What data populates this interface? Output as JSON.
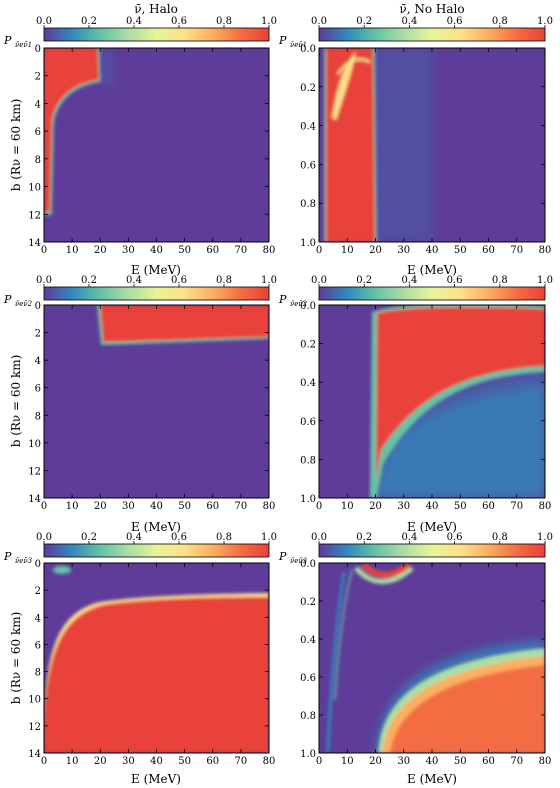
{
  "colors": {
    "colormap": [
      "#5e3c99",
      "#3288bd",
      "#66c2a5",
      "#abdda4",
      "#e6f598",
      "#fee08b",
      "#fdae61",
      "#f46d43",
      "#e8423a"
    ],
    "frame": "#000000"
  },
  "colorbar": {
    "ticks": [
      0.0,
      0.2,
      0.4,
      0.6,
      0.8,
      1.0
    ],
    "tick_labels": [
      "0.0",
      "0.2",
      "0.4",
      "0.6",
      "0.8",
      "1.0"
    ]
  },
  "columns": [
    {
      "title": "ν̄, Halo",
      "ylabel": "b (Rν = 60 km)",
      "yticks": [
        0,
        2,
        4,
        6,
        8,
        10,
        12,
        14
      ],
      "ytick_labels": [
        "0",
        "2",
        "4",
        "6",
        "8",
        "10",
        "12",
        "14"
      ],
      "ylim": [
        0,
        14
      ]
    },
    {
      "title": "ν̄, No Halo",
      "ylabel": "",
      "yticks": [
        0.0,
        0.2,
        0.4,
        0.6,
        0.8,
        1.0
      ],
      "ytick_labels": [
        "0.0",
        "0.2",
        "0.4",
        "0.6",
        "0.8",
        "1.0"
      ],
      "ylim": [
        0,
        1
      ]
    }
  ],
  "rows": [
    {
      "prob_label": "P",
      "prob_sub": "ν̄eν̄1"
    },
    {
      "prob_label": "P",
      "prob_sub": "ν̄eν̄2"
    },
    {
      "prob_label": "P",
      "prob_sub": "ν̄eν̄3"
    }
  ],
  "xaxis": {
    "label": "E (MeV)",
    "ticks": [
      0,
      10,
      20,
      30,
      40,
      50,
      60,
      70,
      80
    ],
    "tick_labels": [
      "0",
      "10",
      "20",
      "30",
      "40",
      "50",
      "60",
      "70",
      "80"
    ],
    "xlim": [
      0,
      80
    ]
  },
  "chart_data": [
    {
      "type": "heatmap",
      "panel": "halo-P1",
      "title": "ν̄, Halo",
      "colorbar_label": "Pν̄eν̄1",
      "xlabel": "E (MeV)",
      "ylabel": "b (Rν = 60 km)",
      "xlim": [
        0,
        80
      ],
      "ylim": [
        0,
        14
      ],
      "y_inverted": true,
      "colorbar_range": [
        0,
        1
      ],
      "regions": [
        {
          "description": "P≈1 for E < 20 MeV, b < 2.5",
          "E": [
            0,
            20
          ],
          "b": [
            0,
            2.5
          ],
          "value": 1.0
        },
        {
          "description": "P≈1 for E < ~3 MeV, b up to ~12",
          "E": [
            0,
            3
          ],
          "b": [
            2.5,
            12
          ],
          "value": 1.0
        },
        {
          "description": "remainder",
          "value": 0.0
        }
      ]
    },
    {
      "type": "heatmap",
      "panel": "nohalo-P1",
      "title": "ν̄, No Halo",
      "colorbar_label": "Pν̄eν̄1",
      "xlabel": "E (MeV)",
      "ylabel": "",
      "xlim": [
        0,
        80
      ],
      "ylim": [
        0,
        1
      ],
      "y_inverted": true,
      "colorbar_range": [
        0,
        1
      ],
      "regions": [
        {
          "description": "P≈1 band 2–19 MeV over all b",
          "E": [
            2,
            19
          ],
          "b": [
            0,
            1
          ],
          "value": 1.0
        },
        {
          "description": "remainder",
          "value": 0.0
        }
      ]
    },
    {
      "type": "heatmap",
      "panel": "halo-P2",
      "title": "",
      "colorbar_label": "Pν̄eν̄2",
      "xlabel": "E (MeV)",
      "ylabel": "b (Rν = 60 km)",
      "xlim": [
        0,
        80
      ],
      "ylim": [
        0,
        14
      ],
      "y_inverted": true,
      "colorbar_range": [
        0,
        1
      ],
      "regions": [
        {
          "description": "P≈1 for E > 20 MeV, b < 2.6",
          "E": [
            20,
            80
          ],
          "b": [
            0,
            2.6
          ],
          "value": 1.0
        },
        {
          "description": "remainder",
          "value": 0.0
        }
      ]
    },
    {
      "type": "heatmap",
      "panel": "nohalo-P2",
      "title": "",
      "colorbar_label": "Pν̄eν̄2",
      "xlabel": "E (MeV)",
      "ylabel": "",
      "xlim": [
        0,
        80
      ],
      "ylim": [
        0,
        1
      ],
      "y_inverted": true,
      "colorbar_range": [
        0,
        1
      ],
      "regions": [
        {
          "description": "P≈1 for E > 20 MeV, b below boundary (0.75 at 20 MeV to 0.3 at 80 MeV)",
          "E": [
            20,
            80
          ],
          "b": [
            0.02,
            0.75
          ],
          "value": 1.0
        },
        {
          "description": "P≈0.2 for E > 20 MeV beyond boundary",
          "value": 0.2
        },
        {
          "description": "remainder",
          "value": 0.0
        }
      ]
    },
    {
      "type": "heatmap",
      "panel": "halo-P3",
      "title": "",
      "colorbar_label": "Pν̄eν̄3",
      "xlabel": "E (MeV)",
      "ylabel": "b (Rν = 60 km)",
      "xlim": [
        0,
        80
      ],
      "ylim": [
        0,
        14
      ],
      "y_inverted": true,
      "colorbar_range": [
        0,
        1
      ],
      "regions": [
        {
          "description": "P≈1 below curve (b≈2.3 at 80 MeV, ~12 at 2 MeV)",
          "value": 1.0
        },
        {
          "description": "remainder",
          "value": 0.0
        }
      ]
    },
    {
      "type": "heatmap",
      "panel": "nohalo-P3",
      "title": "",
      "colorbar_label": "Pν̄eν̄3",
      "xlabel": "E (MeV)",
      "ylabel": "",
      "xlim": [
        0,
        80
      ],
      "ylim": [
        0,
        1
      ],
      "y_inverted": true,
      "colorbar_range": [
        0,
        1
      ],
      "regions": [
        {
          "description": "P≈0.95 for E > 20 MeV, b > boundary (0.8 at 20 MeV to 0.35 at 80 MeV)",
          "value": 0.95
        },
        {
          "description": "small P≈1 patch near b=0, E 10–25 MeV",
          "value": 1.0
        },
        {
          "description": "remainder",
          "value": 0.0
        }
      ]
    }
  ]
}
